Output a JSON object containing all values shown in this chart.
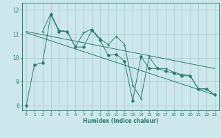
{
  "title": "",
  "xlabel": "Humidex (Indice chaleur)",
  "ylabel": "",
  "bg_color": "#cce8ec",
  "grid_color": "#aacccc",
  "line_color": "#2a7a6a",
  "xlim": [
    -0.5,
    23.5
  ],
  "ylim": [
    7.8,
    12.3
  ],
  "xticks": [
    0,
    1,
    2,
    3,
    4,
    5,
    6,
    7,
    8,
    9,
    10,
    11,
    12,
    13,
    14,
    15,
    16,
    17,
    18,
    19,
    20,
    21,
    22,
    23
  ],
  "yticks": [
    8,
    9,
    10,
    11,
    12
  ],
  "series": [
    {
      "x": [
        0,
        1,
        2,
        3,
        4,
        5,
        6,
        7,
        8,
        9,
        10,
        11,
        12,
        13,
        14,
        15,
        16,
        17,
        18,
        19,
        20,
        21,
        22,
        23
      ],
      "y": [
        8.0,
        9.7,
        9.8,
        11.8,
        11.1,
        11.1,
        10.45,
        10.45,
        11.15,
        10.75,
        10.1,
        10.15,
        9.85,
        8.2,
        10.05,
        9.55,
        9.55,
        9.45,
        9.35,
        9.25,
        9.25,
        8.7,
        8.7,
        8.45
      ],
      "marker": "D",
      "markersize": 2.2
    },
    {
      "x": [
        2,
        3,
        4,
        5,
        6,
        7,
        8,
        9,
        10,
        11,
        12,
        13,
        14,
        15,
        16,
        17,
        18,
        19,
        20,
        21,
        22,
        23
      ],
      "y": [
        11.1,
        11.85,
        11.15,
        11.1,
        10.45,
        11.05,
        11.2,
        10.8,
        10.55,
        10.9,
        10.55,
        8.85,
        8.3,
        10.05,
        9.55,
        9.55,
        9.4,
        9.3,
        9.25,
        8.7,
        8.7,
        8.45
      ],
      "marker": "+",
      "markersize": 3.5
    },
    {
      "x": [
        0,
        23
      ],
      "y": [
        11.1,
        9.55
      ],
      "marker": null,
      "markersize": 0
    },
    {
      "x": [
        0,
        23
      ],
      "y": [
        11.05,
        8.45
      ],
      "marker": null,
      "markersize": 0
    }
  ]
}
